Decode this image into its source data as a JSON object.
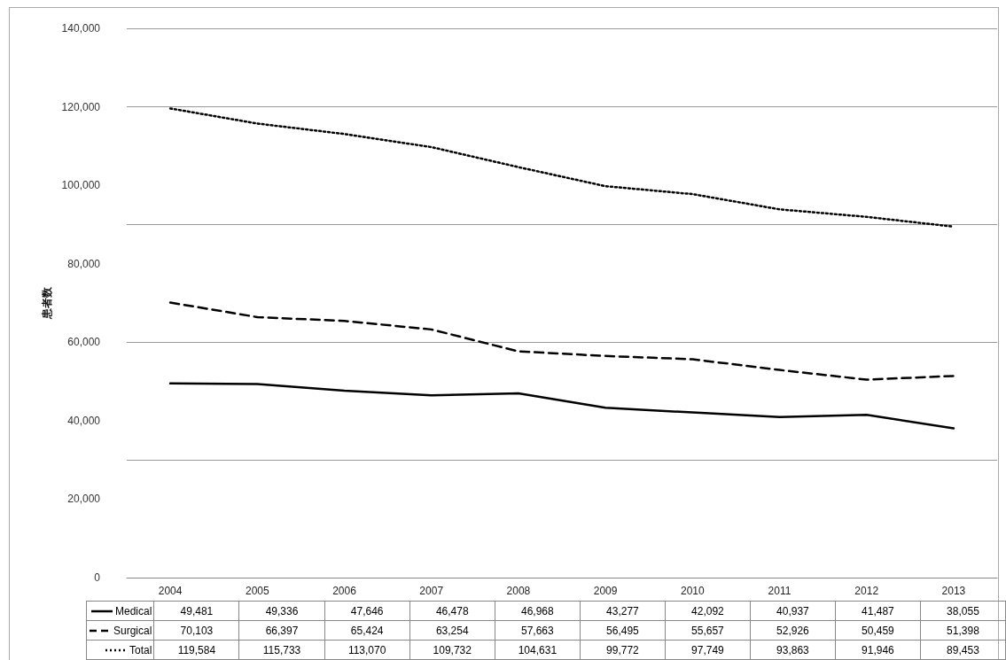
{
  "chart_data": {
    "type": "line",
    "ylabel": "患者数",
    "categories": [
      "2004",
      "2005",
      "2006",
      "2007",
      "2008",
      "2009",
      "2010",
      "2011",
      "2012",
      "2013"
    ],
    "series": [
      {
        "name": "Medical",
        "color": "#000000",
        "line_style": "solid",
        "values": [
          49481,
          49336,
          47646,
          46478,
          46968,
          43277,
          42092,
          40937,
          41487,
          38055
        ],
        "value_labels": [
          "49,481",
          "49,336",
          "47,646",
          "46,478",
          "46,968",
          "43,277",
          "42,092",
          "40,937",
          "41,487",
          "38,055"
        ]
      },
      {
        "name": "Surgical",
        "color": "#000000",
        "line_style": "dashed",
        "values": [
          70103,
          66397,
          65424,
          63254,
          57663,
          56495,
          55657,
          52926,
          50459,
          51398
        ],
        "value_labels": [
          "70,103",
          "66,397",
          "65,424",
          "63,254",
          "57,663",
          "56,495",
          "55,657",
          "52,926",
          "50,459",
          "51,398"
        ]
      },
      {
        "name": "Total",
        "color": "#000000",
        "line_style": "dotted",
        "values": [
          119584,
          115733,
          113070,
          109732,
          104631,
          99772,
          97749,
          93863,
          91946,
          89453
        ],
        "value_labels": [
          "119,584",
          "115,733",
          "113,070",
          "109,732",
          "104,631",
          "99,772",
          "97,749",
          "93,863",
          "91,946",
          "89,453"
        ]
      }
    ],
    "ylim": [
      0,
      140000
    ],
    "yticks": [
      0,
      {
        "value": 20000,
        "label": "20,000"
      },
      {
        "value": 40000,
        "label": "40,000"
      },
      {
        "value": 60000,
        "label": "60,000"
      },
      {
        "value": 80000,
        "label": "80,000"
      },
      {
        "value": 100000,
        "label": "100,000"
      },
      {
        "value": 120000,
        "label": "120,000"
      },
      {
        "value": 140000,
        "label": "140,000"
      }
    ],
    "grid": "y",
    "legend": "bottom",
    "marker": "none"
  }
}
